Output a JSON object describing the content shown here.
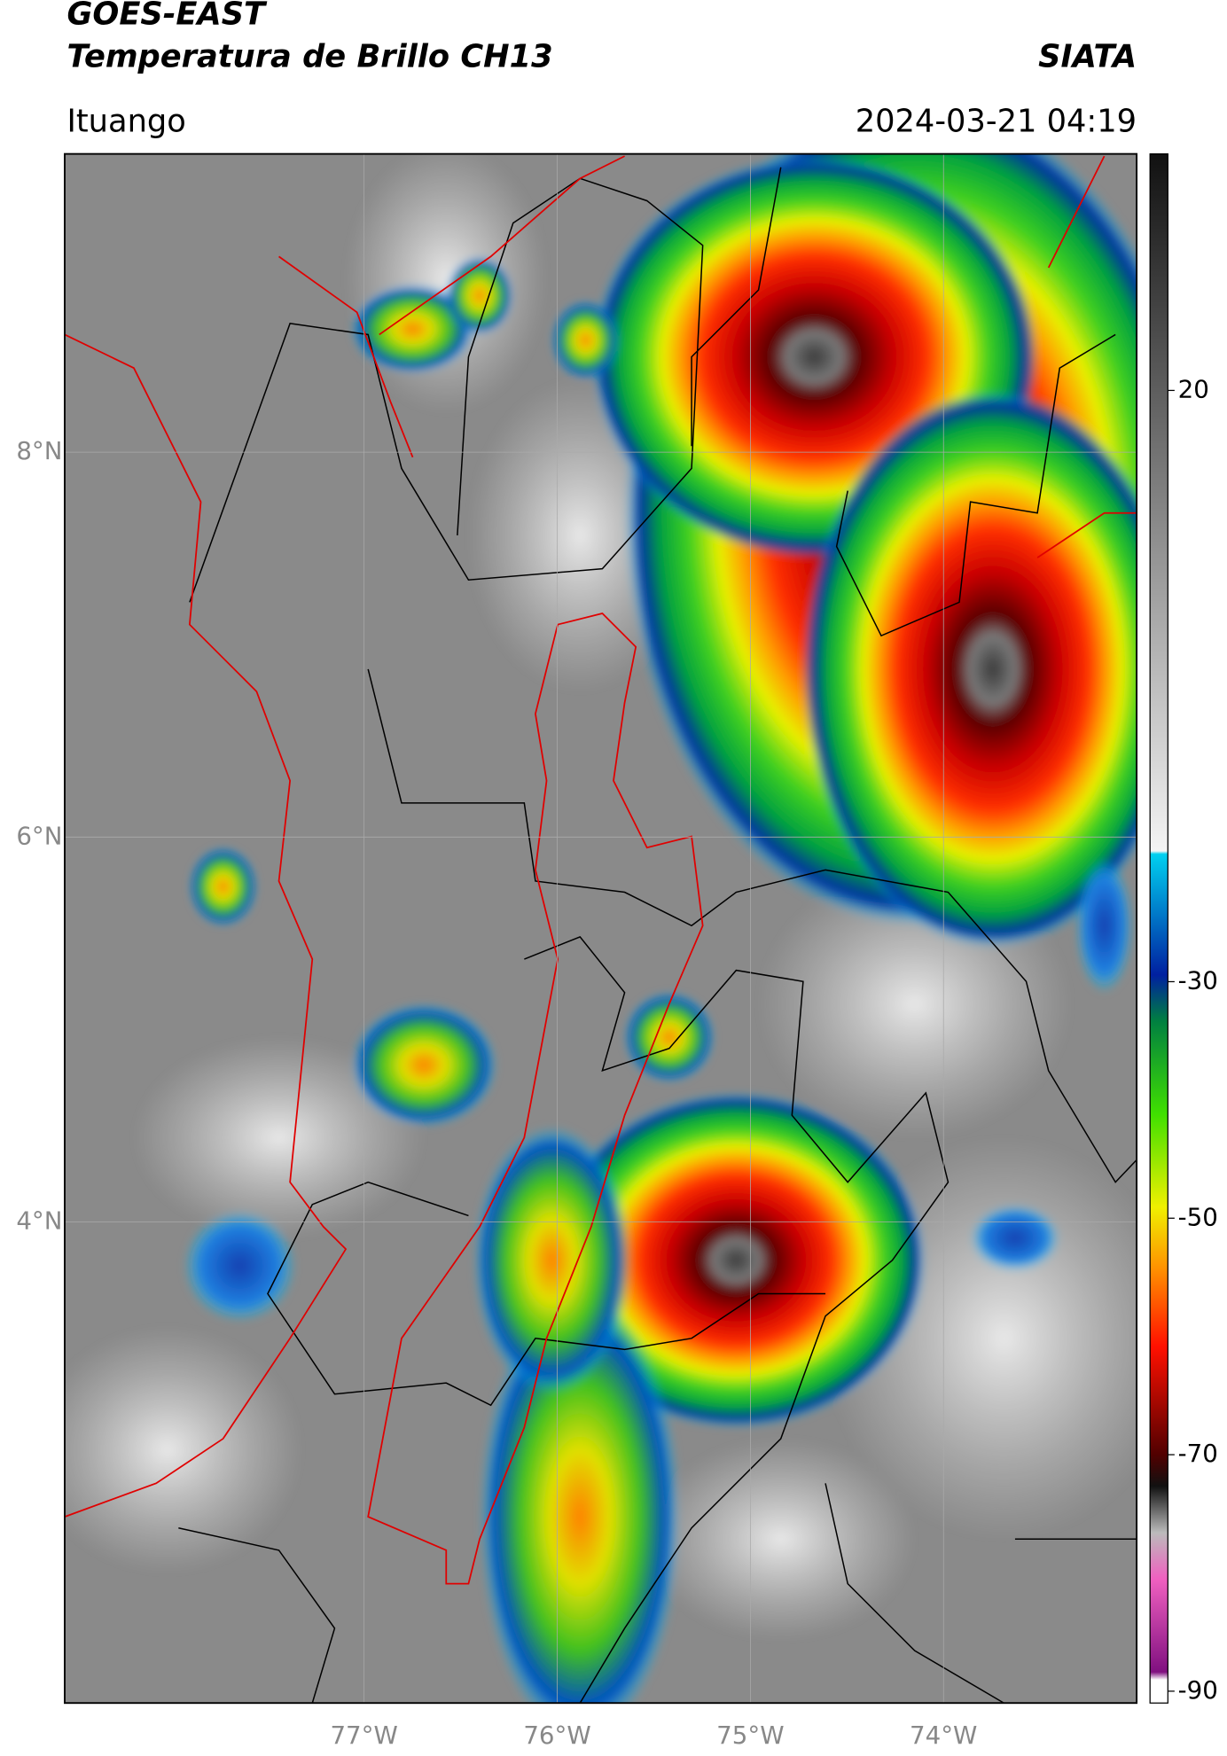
{
  "map": {
    "title": "GOES-EAST",
    "subtitle": "Temperatura de Brillo CH13",
    "source": "SIATA",
    "location": "Ituango",
    "timestamp": "2024-03-21 04:19",
    "xlim": [
      -78.55,
      -73.0
    ],
    "ylim": [
      1.5,
      9.55
    ],
    "xticks": [
      {
        "value": -77,
        "label": "77°W"
      },
      {
        "value": -76,
        "label": "76°W"
      },
      {
        "value": -75,
        "label": "75°W"
      },
      {
        "value": -74,
        "label": "74°W"
      }
    ],
    "yticks": [
      {
        "value": 8,
        "label": "8°N"
      },
      {
        "value": 6,
        "label": "6°N"
      },
      {
        "value": 4,
        "label": "4°N"
      }
    ],
    "grid": true,
    "colorbar": {
      "lim": [
        -91,
        40
      ],
      "ticks": [
        20,
        -30,
        -50,
        -70,
        -90
      ]
    }
  }
}
